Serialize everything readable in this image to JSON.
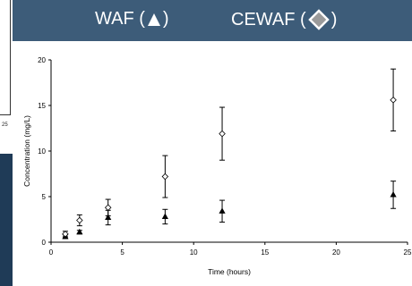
{
  "legend": {
    "waf_label": "WAF (",
    "cewaf_label": "CEWAF (",
    "close": ")"
  },
  "left_fragment_text": "25",
  "colors": {
    "banner": "#3d5c79",
    "legend_text": "#ffffff",
    "cewaf_marker_fill": "#9a9a9a",
    "dark_panel": "#1f3b57"
  },
  "chart_data": {
    "type": "scatter",
    "xlabel": "Time (hours)",
    "ylabel": "Concentration (mg/L)",
    "xlim": [
      0,
      25
    ],
    "ylim": [
      0,
      20
    ],
    "xticks": [
      0,
      5,
      10,
      15,
      20,
      25
    ],
    "yticks": [
      0,
      5,
      10,
      15,
      20
    ],
    "grid": false,
    "legend_position": "top",
    "series": [
      {
        "name": "WAF",
        "marker": "filled-triangle",
        "points": [
          {
            "x": 1,
            "y": 0.6,
            "err": 0.2
          },
          {
            "x": 2,
            "y": 1.1,
            "err": 0.2
          },
          {
            "x": 4,
            "y": 2.7,
            "err": 0.8
          },
          {
            "x": 8,
            "y": 2.8,
            "err": 0.8
          },
          {
            "x": 12,
            "y": 3.4,
            "err": 1.2
          },
          {
            "x": 24,
            "y": 5.2,
            "err": 1.5
          }
        ]
      },
      {
        "name": "CEWAF",
        "marker": "open-diamond",
        "points": [
          {
            "x": 1,
            "y": 0.9,
            "err": 0.3
          },
          {
            "x": 2,
            "y": 2.4,
            "err": 0.6
          },
          {
            "x": 4,
            "y": 3.8,
            "err": 0.9
          },
          {
            "x": 8,
            "y": 7.2,
            "err": 2.3
          },
          {
            "x": 12,
            "y": 11.9,
            "err": 2.9
          },
          {
            "x": 24,
            "y": 15.6,
            "err": 3.4
          }
        ]
      }
    ]
  }
}
